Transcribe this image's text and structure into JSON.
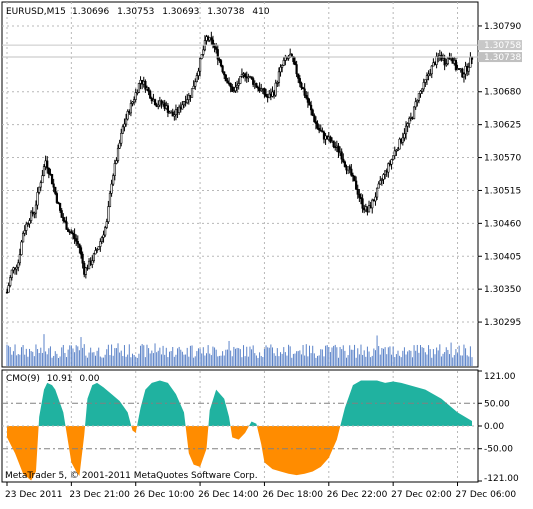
{
  "chart_data": [
    {
      "type": "candlestick",
      "symbol_label": "EURUSD,M15",
      "ohlc_header": [
        "1.30696",
        "1.30753",
        "1.30693",
        "1.30738"
      ],
      "bar_count_label": "410",
      "price_ticks": [
        "1.30790",
        "1.30680",
        "1.30625",
        "1.30570",
        "1.30515",
        "1.30460",
        "1.30405",
        "1.30350",
        "1.30295"
      ],
      "price_tick_values": [
        1.3079,
        1.3068,
        1.30625,
        1.3057,
        1.30515,
        1.3046,
        1.30405,
        1.3035,
        1.30295
      ],
      "price_labels": [
        {
          "text": "1.30758",
          "value": 1.30758,
          "color": "#c8c8c8"
        },
        {
          "text": "1.30738",
          "value": 1.30738,
          "color": "#c0c0c0"
        }
      ],
      "ylim": [
        1.30265,
        1.3082
      ],
      "grid": true,
      "close_path": [
        [
          0,
          1.30345
        ],
        [
          3,
          1.3038
        ],
        [
          7,
          1.30395
        ],
        [
          10,
          1.30445
        ],
        [
          14,
          1.3047
        ],
        [
          17,
          1.3048
        ],
        [
          20,
          1.3052
        ],
        [
          24,
          1.30565
        ],
        [
          27,
          1.3054
        ],
        [
          31,
          1.305
        ],
        [
          34,
          1.3047
        ],
        [
          38,
          1.3045
        ],
        [
          41,
          1.3044
        ],
        [
          45,
          1.3042
        ],
        [
          48,
          1.3038
        ],
        [
          52,
          1.30395
        ],
        [
          55,
          1.3041
        ],
        [
          58,
          1.3043
        ],
        [
          62,
          1.3046
        ],
        [
          65,
          1.3053
        ],
        [
          69,
          1.3058
        ],
        [
          72,
          1.3062
        ],
        [
          76,
          1.3065
        ],
        [
          79,
          1.3067
        ],
        [
          83,
          1.307
        ],
        [
          86,
          1.3069
        ],
        [
          90,
          1.3067
        ],
        [
          93,
          1.3066
        ],
        [
          97,
          1.3066
        ],
        [
          100,
          1.3065
        ],
        [
          103,
          1.3064
        ],
        [
          107,
          1.3065
        ],
        [
          110,
          1.30665
        ],
        [
          114,
          1.30675
        ],
        [
          117,
          1.307
        ],
        [
          121,
          1.3074
        ],
        [
          124,
          1.3077
        ],
        [
          128,
          1.3076
        ],
        [
          131,
          1.3074
        ],
        [
          135,
          1.3071
        ],
        [
          138,
          1.3069
        ],
        [
          141,
          1.3068
        ],
        [
          145,
          1.307
        ],
        [
          148,
          1.3071
        ],
        [
          152,
          1.307
        ],
        [
          155,
          1.3069
        ],
        [
          159,
          1.3068
        ],
        [
          162,
          1.3067
        ],
        [
          166,
          1.3068
        ],
        [
          169,
          1.3071
        ],
        [
          172,
          1.3073
        ],
        [
          176,
          1.3074
        ],
        [
          179,
          1.3072
        ],
        [
          183,
          1.3069
        ],
        [
          186,
          1.3067
        ],
        [
          190,
          1.3064
        ],
        [
          193,
          1.3062
        ],
        [
          197,
          1.30605
        ],
        [
          200,
          1.306
        ],
        [
          203,
          1.3059
        ],
        [
          207,
          1.3058
        ],
        [
          210,
          1.3056
        ],
        [
          214,
          1.3054
        ],
        [
          217,
          1.3052
        ],
        [
          221,
          1.3049
        ],
        [
          224,
          1.3048
        ],
        [
          228,
          1.305
        ],
        [
          231,
          1.3052
        ],
        [
          234,
          1.3054
        ],
        [
          238,
          1.3056
        ],
        [
          241,
          1.3058
        ],
        [
          245,
          1.306
        ],
        [
          248,
          1.3062
        ],
        [
          252,
          1.3064
        ],
        [
          255,
          1.3067
        ],
        [
          259,
          1.3069
        ],
        [
          262,
          1.3071
        ],
        [
          266,
          1.3073
        ],
        [
          269,
          1.3074
        ],
        [
          272,
          1.3073
        ],
        [
          276,
          1.3074
        ],
        [
          279,
          1.3072
        ],
        [
          283,
          1.3071
        ],
        [
          286,
          1.3072
        ],
        [
          289,
          1.30738
        ]
      ],
      "candle_count": 290,
      "x_ticks": [
        "23 Dec 2011",
        "23 Dec 21:00",
        "26 Dec 10:00",
        "26 Dec 14:00",
        "26 Dec 18:00",
        "26 Dec 22:00",
        "27 Dec 02:00",
        "27 Dec 06:00"
      ],
      "x_tick_index": [
        0,
        40,
        80,
        120,
        160,
        200,
        240,
        280
      ],
      "volume_bars": true,
      "colors": {
        "candle": "#000000",
        "volume": "#5a82c8"
      }
    },
    {
      "type": "area",
      "label": "CMO(9)",
      "current_values": [
        "10.91",
        "0.00"
      ],
      "y_ticks": [
        "121.00",
        "50.00",
        "0.00",
        "-50.00",
        "-121.00"
      ],
      "y_tick_values": [
        121,
        50,
        0,
        -50,
        -121
      ],
      "ylim": [
        -121,
        121
      ],
      "levels": [
        50,
        -50
      ],
      "colors": {
        "positive": "#20b2a0",
        "negative": "#ff8c00"
      },
      "x": [
        0,
        5,
        10,
        15,
        18,
        20,
        23,
        25,
        28,
        30,
        35,
        40,
        43,
        45,
        48,
        50,
        53,
        56,
        60,
        65,
        70,
        75,
        78,
        80,
        83,
        86,
        90,
        95,
        100,
        105,
        110,
        113,
        116,
        120,
        124,
        126,
        130,
        135,
        138,
        140,
        144,
        148,
        152,
        155,
        158,
        160,
        165,
        170,
        175,
        180,
        185,
        190,
        195,
        200,
        205,
        210,
        215,
        220,
        225,
        230,
        235,
        240,
        245,
        250,
        260,
        270,
        280,
        289
      ],
      "values": [
        -25,
        -60,
        -105,
        -120,
        -100,
        20,
        80,
        95,
        90,
        80,
        30,
        -80,
        -100,
        -110,
        -20,
        60,
        90,
        95,
        85,
        70,
        55,
        30,
        -10,
        -15,
        40,
        80,
        95,
        100,
        95,
        70,
        30,
        -60,
        -85,
        -90,
        -50,
        35,
        80,
        60,
        20,
        -25,
        -30,
        -15,
        10,
        5,
        -40,
        -80,
        -95,
        -100,
        -105,
        -108,
        -105,
        -100,
        -90,
        -70,
        -30,
        40,
        90,
        100,
        100,
        100,
        95,
        98,
        95,
        90,
        80,
        60,
        30,
        10.91
      ]
    }
  ],
  "footer": {
    "copyright": "MetaTrader 5, © 2001-2011 MetaQuotes Software Corp."
  }
}
